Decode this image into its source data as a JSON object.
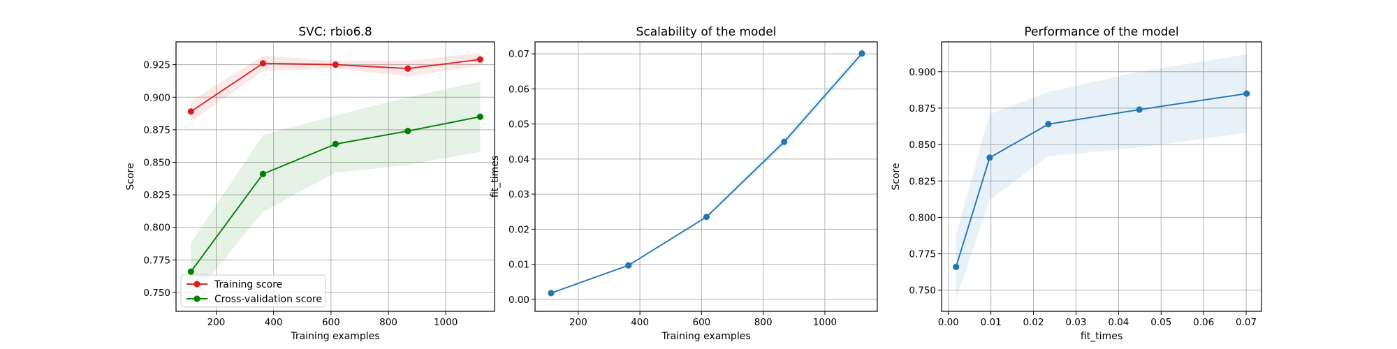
{
  "chart_data": [
    {
      "type": "line",
      "title": "SVC: rbio6.8",
      "xlabel": "Training examples",
      "ylabel": "Score",
      "xlim": [
        60,
        1170
      ],
      "ylim": [
        0.7355,
        0.9425
      ],
      "xticks": [
        200,
        400,
        600,
        800,
        1000
      ],
      "xtick_labels": [
        "200",
        "400",
        "600",
        "800",
        "1000"
      ],
      "yticks": [
        0.75,
        0.775,
        0.8,
        0.825,
        0.85,
        0.875,
        0.9,
        0.925
      ],
      "ytick_labels": [
        "0.750",
        "0.775",
        "0.800",
        "0.825",
        "0.850",
        "0.875",
        "0.900",
        "0.925"
      ],
      "grid": true,
      "legend": "lower-left",
      "x": [
        112,
        363,
        616,
        868,
        1120
      ],
      "series": [
        {
          "name": "Training score",
          "color": "#d62728",
          "marker_color": "#e31a1c",
          "values": [
            0.889,
            0.926,
            0.925,
            0.922,
            0.929
          ],
          "lower": [
            0.881,
            0.92,
            0.922,
            0.916,
            0.924
          ],
          "upper": [
            0.897,
            0.932,
            0.928,
            0.928,
            0.934
          ]
        },
        {
          "name": "Cross-validation score",
          "color": "#008000",
          "marker_color": "#008000",
          "values": [
            0.766,
            0.841,
            0.864,
            0.874,
            0.885
          ],
          "lower": [
            0.744,
            0.812,
            0.842,
            0.848,
            0.858
          ],
          "upper": [
            0.788,
            0.871,
            0.886,
            0.9,
            0.912
          ]
        }
      ]
    },
    {
      "type": "line",
      "title": "Scalability of the model",
      "xlabel": "Training examples",
      "ylabel": "fit_times",
      "xlim": [
        60,
        1170
      ],
      "ylim": [
        -0.0034,
        0.0734
      ],
      "xticks": [
        200,
        400,
        600,
        800,
        1000
      ],
      "xtick_labels": [
        "200",
        "400",
        "600",
        "800",
        "1000"
      ],
      "yticks": [
        0.0,
        0.01,
        0.02,
        0.03,
        0.04,
        0.05,
        0.06,
        0.07
      ],
      "ytick_labels": [
        "0.00",
        "0.01",
        "0.02",
        "0.03",
        "0.04",
        "0.05",
        "0.06",
        "0.07"
      ],
      "grid": true,
      "x": [
        112,
        363,
        616,
        868,
        1120
      ],
      "series": [
        {
          "color": "#1f77b4",
          "values": [
            0.0018,
            0.0097,
            0.0235,
            0.0449,
            0.0701
          ],
          "lower": [
            0.0016,
            0.0095,
            0.0232,
            0.0438,
            0.069
          ],
          "upper": [
            0.002,
            0.0099,
            0.0238,
            0.046,
            0.0712
          ]
        }
      ]
    },
    {
      "type": "line",
      "title": "Performance of the model",
      "xlabel": "fit_times",
      "ylabel": "Score",
      "xlim": [
        -0.0016,
        0.0736
      ],
      "ylim": [
        0.7355,
        0.9205
      ],
      "xticks": [
        0.0,
        0.01,
        0.02,
        0.03,
        0.04,
        0.05,
        0.06,
        0.07
      ],
      "xtick_labels": [
        "0.00",
        "0.01",
        "0.02",
        "0.03",
        "0.04",
        "0.05",
        "0.06",
        "0.07"
      ],
      "yticks": [
        0.75,
        0.775,
        0.8,
        0.825,
        0.85,
        0.875,
        0.9
      ],
      "ytick_labels": [
        "0.750",
        "0.775",
        "0.800",
        "0.825",
        "0.850",
        "0.875",
        "0.900"
      ],
      "grid": true,
      "x": [
        0.0018,
        0.0097,
        0.0235,
        0.0449,
        0.0701
      ],
      "series": [
        {
          "color": "#1f77b4",
          "values": [
            0.766,
            0.841,
            0.864,
            0.874,
            0.885
          ],
          "lower": [
            0.744,
            0.812,
            0.842,
            0.848,
            0.858
          ],
          "upper": [
            0.788,
            0.871,
            0.886,
            0.9,
            0.912
          ]
        }
      ]
    }
  ]
}
